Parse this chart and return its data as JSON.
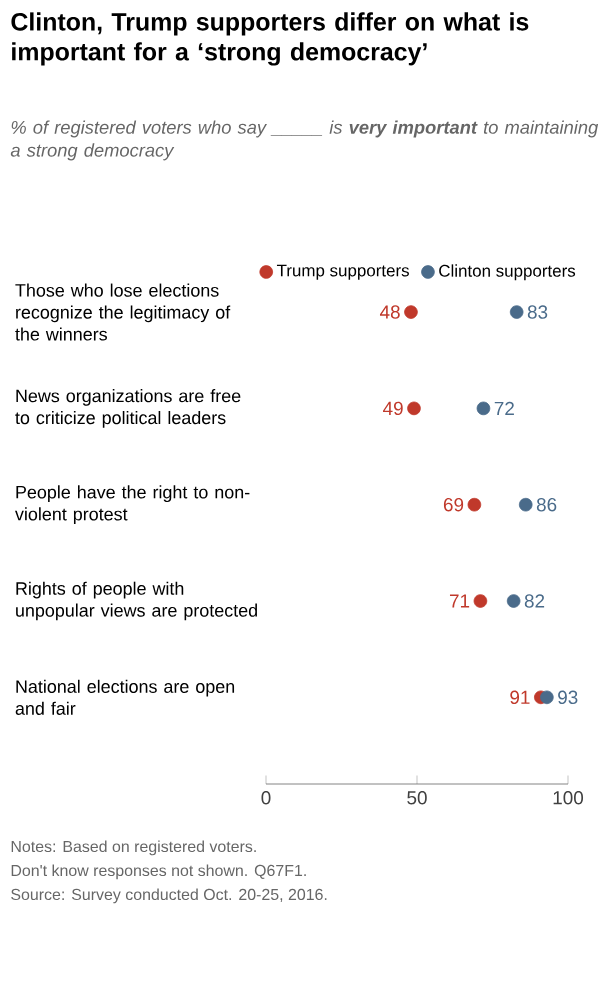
{
  "chart_data": {
    "type": "scatter",
    "orientation": "horizontal",
    "title": "Clinton, Trump supporters differ on what is important for a ‘strong democracy’",
    "subtitle": "% of registered voters who say _____ is **very important** to maintaining a strong democracy",
    "categories": [
      "Those who lose elections recognize the legitimacy of the winners",
      "News organizations are free to criticize political leaders",
      "People have the right to non-violent protest",
      "Rights of people with unpopular views are protected",
      "National elections are open and fair"
    ],
    "series": [
      {
        "name": "Trump supporters",
        "color": "#c0392b",
        "values": [
          48,
          49,
          69,
          71,
          91
        ]
      },
      {
        "name": "Clinton supporters",
        "color": "#4a6b8a",
        "values": [
          83,
          72,
          86,
          82,
          93
        ]
      }
    ],
    "xlim": [
      0,
      100
    ],
    "xticks": [
      0,
      50,
      100
    ],
    "marker": "circle",
    "data_labels": true,
    "legend": "top right",
    "annotations": [
      "Notes: Based on registered voters.",
      "Don't know responses not shown. Q67F1.",
      "Source: Survey conducted Oct. 20-25, 2016."
    ]
  }
}
